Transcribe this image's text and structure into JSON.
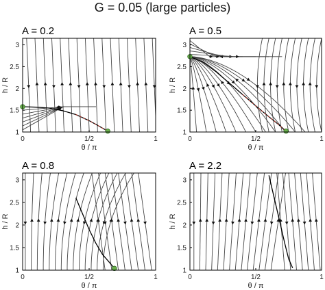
{
  "figure": {
    "title": "G = 0.05  (large particles)"
  },
  "colors": {
    "stream": "#444444",
    "fixed_point": "#6ab04c",
    "separatrix": "#000000",
    "unstable_path": "#c0392b"
  },
  "chart_data": [
    {
      "type": "line",
      "title": "A = 0.2",
      "xlabel": "θ / π",
      "ylabel": "h / R",
      "xlim": [
        0,
        1
      ],
      "ylim": [
        1,
        3.15
      ],
      "xticks": [
        "0",
        "1/2",
        "1"
      ],
      "yticks": [
        "1",
        "1.5",
        "2",
        "2.5",
        "3"
      ],
      "fixed_points": [
        {
          "x": 0,
          "y": 1.58
        },
        {
          "x": 0.64,
          "y": 1.02
        }
      ],
      "separatrix": {
        "x": [
          0,
          0.1,
          0.2,
          0.3,
          0.4,
          0.5,
          0.56,
          0.6,
          0.64
        ],
        "y": [
          1.58,
          1.57,
          1.55,
          1.49,
          1.4,
          1.26,
          1.16,
          1.09,
          1.02
        ]
      }
    },
    {
      "type": "line",
      "title": "A = 0.5",
      "xlabel": "θ / π",
      "ylabel": "h / R",
      "xlim": [
        0,
        1
      ],
      "ylim": [
        1,
        3.15
      ],
      "xticks": [
        "0",
        "1/2",
        "1"
      ],
      "yticks": [
        "1",
        "1.5",
        "2",
        "2.5",
        "3"
      ],
      "fixed_points": [
        {
          "x": 0,
          "y": 2.73
        },
        {
          "x": 0.73,
          "y": 1.02
        }
      ],
      "separatrix": {
        "x": [
          0,
          0.1,
          0.2,
          0.3,
          0.4,
          0.5,
          0.6,
          0.67,
          0.73
        ],
        "y": [
          2.73,
          2.6,
          2.38,
          2.12,
          1.86,
          1.6,
          1.35,
          1.18,
          1.02
        ]
      }
    },
    {
      "type": "line",
      "title": "A = 0.8",
      "xlabel": "θ / π",
      "ylabel": "h / R",
      "xlim": [
        0,
        1
      ],
      "ylim": [
        1,
        3.15
      ],
      "xticks": [
        "0",
        "1/2",
        "1"
      ],
      "yticks": [
        "1",
        "1.5",
        "2",
        "2.5",
        "3"
      ],
      "fixed_points": [
        {
          "x": 0.69,
          "y": 1.04
        }
      ],
      "separatrix": {
        "x": [
          0.4,
          0.45,
          0.5,
          0.55,
          0.6,
          0.65,
          0.69
        ],
        "y": [
          2.6,
          2.25,
          1.9,
          1.6,
          1.35,
          1.18,
          1.04
        ]
      }
    },
    {
      "type": "line",
      "title": "A = 2.2",
      "xlabel": "θ / π",
      "ylabel": "h / R",
      "xlim": [
        0,
        1
      ],
      "ylim": [
        1,
        3.15
      ],
      "xticks": [
        "0",
        "1/2",
        "1"
      ],
      "yticks": [
        "1",
        "1.5",
        "2",
        "2.5",
        "3"
      ],
      "fixed_points": [],
      "separatrix": {
        "x": [
          0.6,
          0.64,
          0.68,
          0.72,
          0.75,
          0.78
        ],
        "y": [
          3.1,
          2.6,
          2.1,
          1.6,
          1.25,
          1.05
        ]
      }
    }
  ]
}
